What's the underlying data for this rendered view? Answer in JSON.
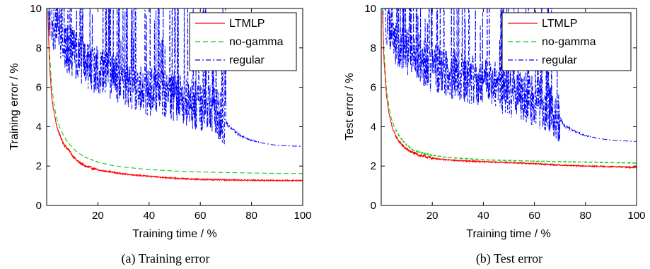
{
  "chart_data": [
    {
      "type": "line",
      "caption": "(a)  Training error",
      "xlabel": "Training time / %",
      "ylabel": "Training error / %",
      "xlim": [
        0,
        100
      ],
      "ylim": [
        0,
        10
      ],
      "xticks": [
        20,
        40,
        60,
        80,
        100
      ],
      "yticks": [
        0,
        2,
        4,
        6,
        8,
        10
      ],
      "grid": false,
      "legend": "top-right",
      "series": [
        {
          "name": "LTMLP",
          "color": "#ff0000",
          "style": "solid",
          "x": [
            0.5,
            1,
            2,
            3,
            4,
            5,
            6,
            7,
            8,
            9,
            10,
            12,
            15,
            20,
            25,
            30,
            40,
            50,
            60,
            70,
            80,
            90,
            100
          ],
          "y": [
            9.8,
            7.4,
            5.4,
            4.6,
            4.0,
            3.6,
            3.3,
            3.05,
            2.9,
            2.75,
            2.55,
            2.25,
            2.0,
            1.8,
            1.7,
            1.6,
            1.48,
            1.38,
            1.32,
            1.3,
            1.28,
            1.27,
            1.26
          ],
          "noise": 0.05
        },
        {
          "name": "no-gamma",
          "color": "#00cc00",
          "style": "dashed",
          "x": [
            0.5,
            1,
            2,
            3,
            4,
            5,
            6,
            7,
            8,
            9,
            10,
            12,
            15,
            20,
            25,
            30,
            40,
            50,
            60,
            70,
            80,
            90,
            100
          ],
          "y": [
            10.0,
            8.0,
            6.0,
            5.0,
            4.4,
            4.0,
            3.7,
            3.45,
            3.25,
            3.1,
            2.95,
            2.7,
            2.45,
            2.2,
            2.05,
            1.95,
            1.82,
            1.75,
            1.7,
            1.67,
            1.65,
            1.63,
            1.62
          ],
          "noise": 0.01
        },
        {
          "name": "regular",
          "color": "#0000ff",
          "style": "dashdot",
          "x": [
            0.5,
            1,
            2,
            3,
            5,
            8,
            10,
            15,
            20,
            30,
            40,
            50,
            60,
            65,
            69,
            72,
            75,
            80,
            85,
            90,
            95,
            100
          ],
          "y": [
            10.0,
            10.0,
            9.5,
            9.0,
            8.5,
            8.0,
            7.8,
            7.3,
            6.8,
            6.3,
            5.8,
            5.5,
            5.0,
            4.8,
            4.4,
            3.9,
            3.6,
            3.3,
            3.15,
            3.05,
            3.02,
            3.0
          ],
          "spikes_until": 70,
          "noise": 0.8
        }
      ]
    },
    {
      "type": "line",
      "caption": "(b)  Test error",
      "xlabel": "Training time / %",
      "ylabel": "Test error / %",
      "xlim": [
        0,
        100
      ],
      "ylim": [
        0,
        10
      ],
      "xticks": [
        20,
        40,
        60,
        80,
        100
      ],
      "yticks": [
        0,
        2,
        4,
        6,
        8,
        10
      ],
      "grid": false,
      "legend": "top-right",
      "series": [
        {
          "name": "LTMLP",
          "color": "#ff0000",
          "style": "solid",
          "x": [
            0.5,
            1,
            2,
            3,
            4,
            5,
            6,
            7,
            8,
            9,
            10,
            12,
            15,
            20,
            25,
            30,
            40,
            50,
            60,
            70,
            80,
            90,
            100
          ],
          "y": [
            9.8,
            7.6,
            5.6,
            4.7,
            4.1,
            3.7,
            3.45,
            3.25,
            3.1,
            2.95,
            2.85,
            2.7,
            2.55,
            2.4,
            2.32,
            2.28,
            2.22,
            2.18,
            2.12,
            2.05,
            2.0,
            1.97,
            1.93
          ],
          "noise": 0.05
        },
        {
          "name": "no-gamma",
          "color": "#00cc00",
          "style": "dashed",
          "x": [
            0.5,
            1,
            2,
            3,
            4,
            5,
            6,
            7,
            8,
            9,
            10,
            12,
            15,
            20,
            25,
            30,
            40,
            50,
            60,
            70,
            80,
            90,
            100
          ],
          "y": [
            10.0,
            8.0,
            6.0,
            5.0,
            4.4,
            4.0,
            3.75,
            3.55,
            3.35,
            3.2,
            3.05,
            2.85,
            2.7,
            2.55,
            2.45,
            2.4,
            2.32,
            2.28,
            2.25,
            2.22,
            2.2,
            2.18,
            2.15
          ],
          "noise": 0.03
        },
        {
          "name": "regular",
          "color": "#0000ff",
          "style": "dashdot",
          "x": [
            0.5,
            1,
            2,
            3,
            5,
            8,
            10,
            15,
            20,
            30,
            40,
            50,
            60,
            65,
            70,
            72,
            75,
            80,
            85,
            90,
            95,
            100
          ],
          "y": [
            10.0,
            10.0,
            9.5,
            9.0,
            8.5,
            8.0,
            7.8,
            7.4,
            7.0,
            6.6,
            6.2,
            5.8,
            5.3,
            5.0,
            4.4,
            4.0,
            3.8,
            3.55,
            3.4,
            3.32,
            3.28,
            3.25
          ],
          "spikes_until": 70,
          "noise": 0.8
        }
      ]
    }
  ]
}
